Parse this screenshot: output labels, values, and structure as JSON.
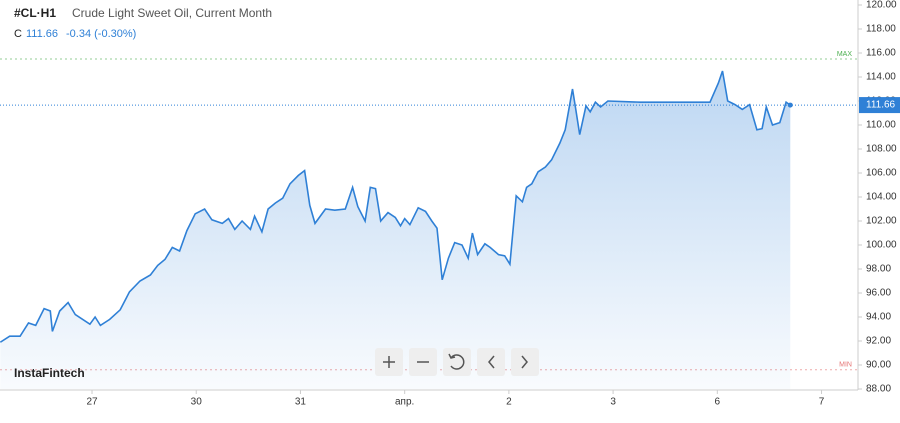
{
  "chart_data": {
    "type": "area",
    "symbol": "#CL·H1",
    "title": "Crude Light Sweet Oil, Current Month",
    "close_label": "C",
    "last_price": 111.66,
    "change": "-0.34 (-0.30%)",
    "watermark": "InstaFintech",
    "max_line": {
      "label": "MAX",
      "value": 115.5
    },
    "min_line": {
      "label": "MIN",
      "value": 89.6
    },
    "color": "#2f80d6",
    "grid": false,
    "x": [
      -0.88,
      -0.79,
      -0.69,
      -0.61,
      -0.54,
      -0.46,
      -0.4,
      -0.38,
      -0.31,
      -0.23,
      -0.16,
      -0.02,
      0.03,
      0.08,
      0.17,
      0.27,
      0.36,
      0.46,
      0.56,
      0.63,
      0.7,
      0.77,
      0.84,
      0.91,
      0.99,
      1.08,
      1.15,
      1.25,
      1.31,
      1.37,
      1.44,
      1.52,
      1.56,
      1.63,
      1.69,
      1.76,
      1.83,
      1.9,
      1.98,
      2.04,
      2.09,
      2.14,
      2.24,
      2.33,
      2.43,
      2.5,
      2.55,
      2.62,
      2.67,
      2.72,
      2.77,
      2.84,
      2.91,
      2.96,
      3.0,
      3.05,
      3.13,
      3.2,
      3.26,
      3.31,
      3.36,
      3.42,
      3.48,
      3.55,
      3.61,
      3.65,
      3.7,
      3.77,
      3.82,
      3.9,
      3.96,
      4.01,
      4.07,
      4.13,
      4.17,
      4.22,
      4.28,
      4.35,
      4.41,
      4.49,
      4.54,
      4.61,
      4.64,
      4.68,
      4.74,
      4.78,
      4.83,
      4.88,
      4.95,
      5.26,
      5.93,
      6.01,
      6.05,
      6.1,
      6.17,
      6.24,
      6.31,
      6.38,
      6.43,
      6.47,
      6.53,
      6.6,
      6.66,
      6.7
    ],
    "values": [
      91.9,
      92.4,
      92.4,
      93.5,
      93.3,
      94.7,
      94.5,
      92.8,
      94.5,
      95.2,
      94.2,
      93.4,
      94.0,
      93.3,
      93.8,
      94.6,
      96.1,
      97.0,
      97.5,
      98.3,
      98.8,
      99.8,
      99.5,
      101.2,
      102.6,
      103.0,
      102.1,
      101.8,
      102.2,
      101.3,
      102.0,
      101.3,
      102.4,
      101.1,
      103.0,
      103.5,
      103.9,
      105.1,
      105.8,
      106.2,
      103.3,
      101.8,
      103.0,
      102.9,
      103.0,
      104.8,
      103.2,
      102.0,
      104.8,
      104.7,
      102.0,
      102.7,
      102.3,
      101.6,
      102.2,
      101.7,
      103.1,
      102.8,
      102.0,
      101.4,
      97.1,
      98.9,
      100.2,
      100.0,
      98.9,
      101.0,
      99.2,
      100.1,
      99.8,
      99.2,
      99.1,
      98.4,
      104.1,
      103.6,
      104.8,
      105.1,
      106.1,
      106.5,
      107.1,
      108.5,
      109.6,
      113.0,
      111.4,
      109.2,
      111.6,
      111.1,
      111.9,
      111.5,
      112.0,
      111.9,
      111.9,
      113.5,
      114.5,
      112.0,
      111.7,
      111.3,
      111.7,
      109.6,
      109.7,
      111.5,
      110.0,
      110.2,
      111.9,
      111.66
    ],
    "xlim": [
      -0.883,
      7.35
    ],
    "xticks": [
      {
        "value": 0,
        "label": "27"
      },
      {
        "value": 1,
        "label": "30"
      },
      {
        "value": 2,
        "label": "31"
      },
      {
        "value": 3,
        "label": "апр."
      },
      {
        "value": 4,
        "label": "2"
      },
      {
        "value": 5,
        "label": "3"
      },
      {
        "value": 6,
        "label": "6"
      },
      {
        "value": 7,
        "label": "7"
      }
    ],
    "ylim": [
      88,
      120
    ],
    "yticks": [
      {
        "value": 88,
        "label": "88.00"
      },
      {
        "value": 90,
        "label": "90.00"
      },
      {
        "value": 92,
        "label": "92.00"
      },
      {
        "value": 94,
        "label": "94.00"
      },
      {
        "value": 96,
        "label": "96.00"
      },
      {
        "value": 98,
        "label": "98.00"
      },
      {
        "value": 100,
        "label": "100.00"
      },
      {
        "value": 102,
        "label": "102.00"
      },
      {
        "value": 104,
        "label": "104.00"
      },
      {
        "value": 106,
        "label": "106.00"
      },
      {
        "value": 108,
        "label": "108.00"
      },
      {
        "value": 110,
        "label": "110.00"
      },
      {
        "value": 112,
        "label": "112.00"
      },
      {
        "value": 114,
        "label": "114.00"
      },
      {
        "value": 116,
        "label": "116.00"
      },
      {
        "value": 118,
        "label": "118.00"
      },
      {
        "value": 120,
        "label": "120.00"
      }
    ]
  }
}
